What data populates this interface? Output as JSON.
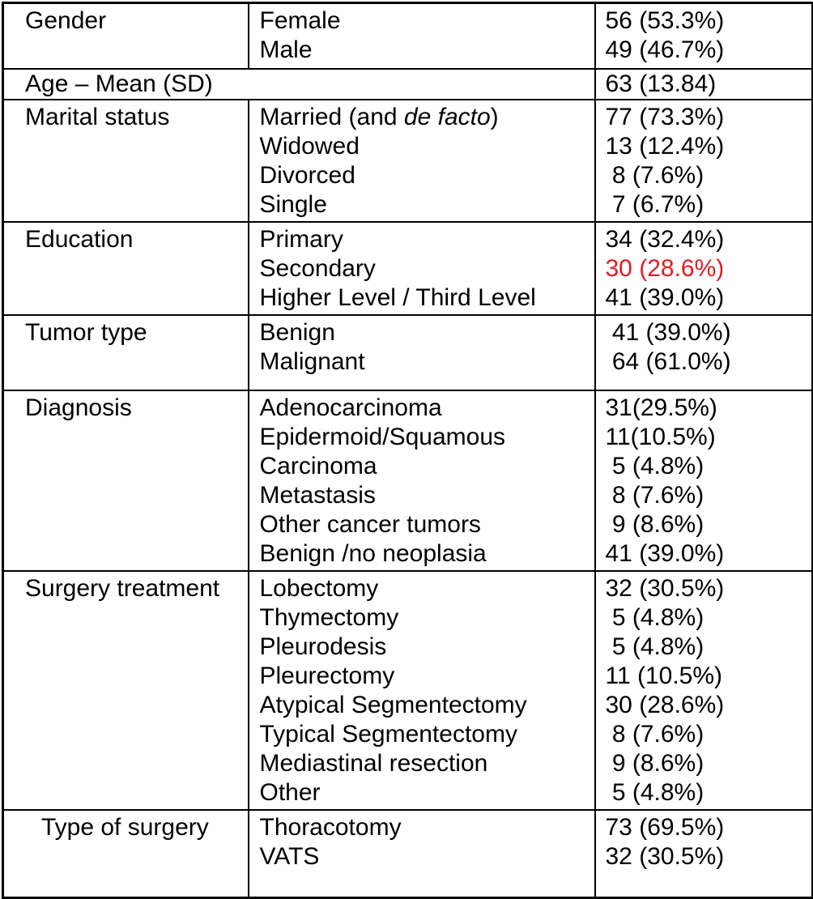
{
  "table": {
    "colors": {
      "highlight_red": "#e21c22",
      "border": "#000000",
      "text": "#000000",
      "background": "#ffffff"
    },
    "sections": [
      {
        "category": "Gender",
        "rows": [
          {
            "label": "Female",
            "value": "56 (53.3%)"
          },
          {
            "label": "Male",
            "value": "49 (46.7%)"
          }
        ]
      },
      {
        "category": "Age – Mean (SD)",
        "merged": true,
        "rows": [
          {
            "label": "",
            "value": "63 (13.84)"
          }
        ]
      },
      {
        "category": "Marital status",
        "rows": [
          {
            "label_pre": "Married (and ",
            "label_italic": "de facto",
            "label_post": ")",
            "value": "77 (73.3%)"
          },
          {
            "label": "Widowed",
            "value": "13 (12.4%)"
          },
          {
            "label": "Divorced",
            "value": " 8 (7.6%)"
          },
          {
            "label": "Single",
            "value": " 7 (6.7%)"
          }
        ]
      },
      {
        "category": "Education",
        "rows": [
          {
            "label": "Primary",
            "value": "34 (32.4%)"
          },
          {
            "label": "Secondary",
            "value": "30 (28.6%)",
            "highlight": true
          },
          {
            "label": "Higher Level / Third Level",
            "value": "41 (39.0%)"
          }
        ]
      },
      {
        "category": "Tumor type",
        "rows": [
          {
            "label": "Benign",
            "value": " 41 (39.0%)"
          },
          {
            "label": "Malignant",
            "value": " 64 (61.0%)"
          }
        ]
      },
      {
        "category": "Diagnosis",
        "rows": [
          {
            "label": "Adenocarcinoma",
            "value": "31(29.5%)"
          },
          {
            "label": "Epidermoid/Squamous",
            "value": "11(10.5%)"
          },
          {
            "label": "Carcinoma",
            "value": " 5 (4.8%)"
          },
          {
            "label": "Metastasis",
            "value": " 8 (7.6%)"
          },
          {
            "label": "Other cancer tumors",
            "value": " 9 (8.6%)"
          },
          {
            "label": "Benign /no neoplasia",
            "value": "41 (39.0%)"
          }
        ]
      },
      {
        "category": "Surgery treatment",
        "rows": [
          {
            "label": "Lobectomy",
            "value": "32 (30.5%)"
          },
          {
            "label": "Thymectomy",
            "value": " 5 (4.8%)"
          },
          {
            "label": "Pleurodesis",
            "value": " 5 (4.8%)"
          },
          {
            "label": "Pleurectomy",
            "value": "11 (10.5%)"
          },
          {
            "label": "Atypical Segmentectomy",
            "value": "30 (28.6%)"
          },
          {
            "label": "Typical Segmentectomy",
            "value": " 8 (7.6%)"
          },
          {
            "label": "Mediastinal resection",
            "value": " 9 (8.6%)"
          },
          {
            "label": "Other",
            "value": " 5 (4.8%)"
          }
        ]
      },
      {
        "category": "Type of surgery",
        "rows": [
          {
            "label": "Thoracotomy",
            "value": "73 (69.5%)"
          },
          {
            "label": "VATS",
            "value": "32 (30.5%)"
          }
        ]
      }
    ]
  }
}
